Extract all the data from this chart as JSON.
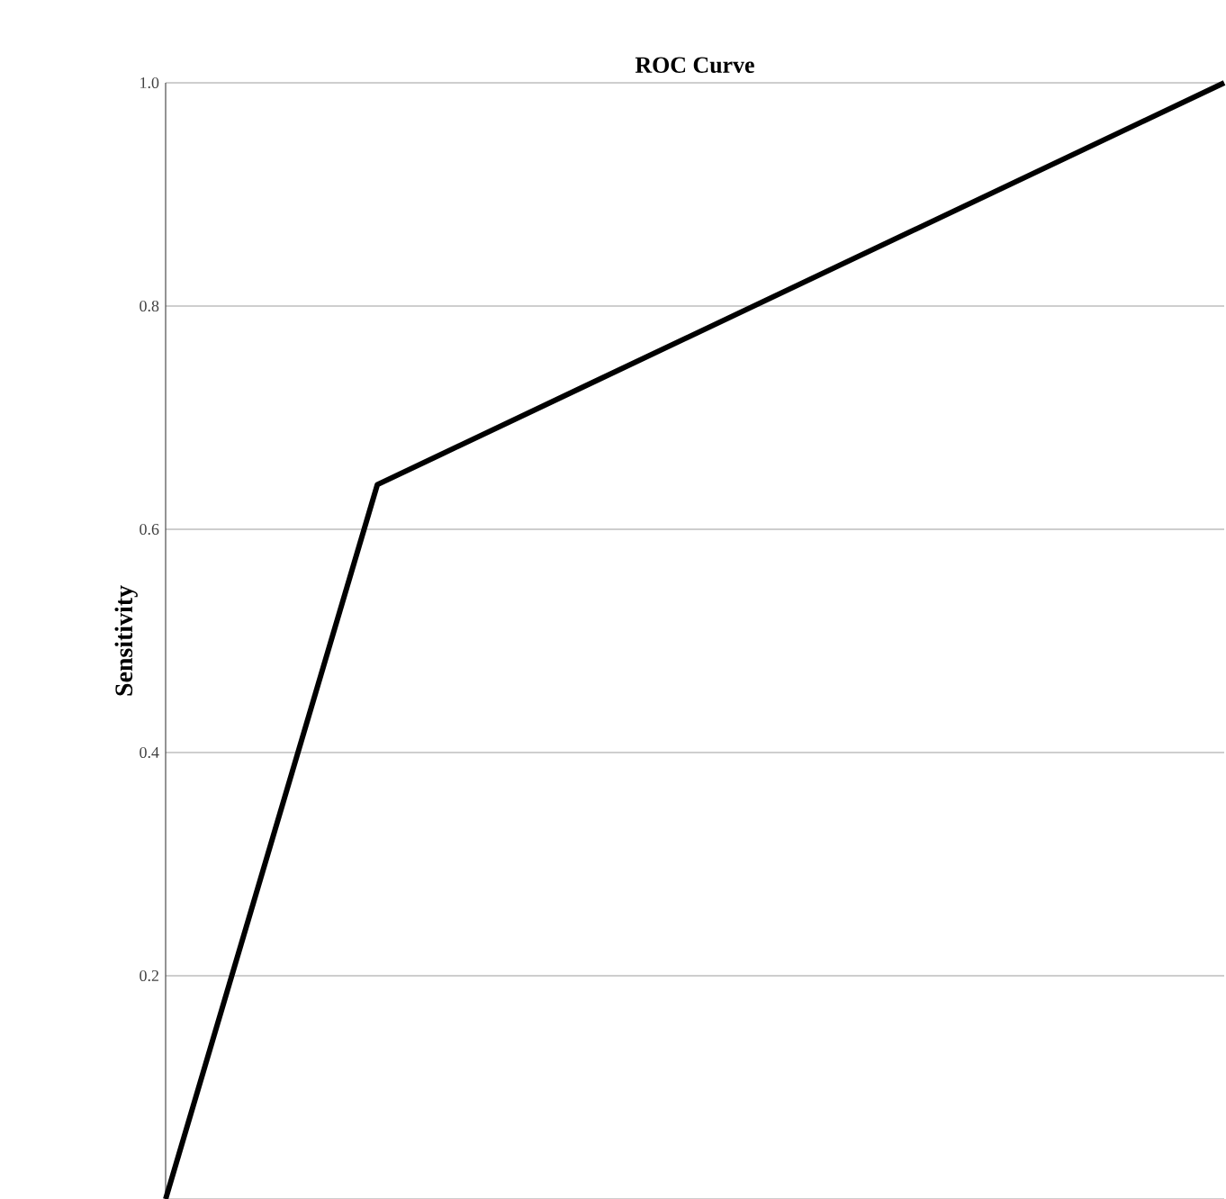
{
  "chart_data": {
    "type": "line",
    "title": "ROC Curve",
    "ylabel": "Sensitivity",
    "categories": [
      null,
      null,
      null,
      null,
      null,
      null
    ],
    "series": [
      {
        "color": "#000000",
        "values": [
          0,
          0.64,
          0.73,
          0.82,
          0.91,
          1.0
        ]
      }
    ],
    "ylim": [
      0,
      1
    ],
    "yticks": [
      {
        "value": 0,
        "label": null
      },
      {
        "value": 0.2,
        "label": "0.2"
      },
      {
        "value": 0.4,
        "label": "0.4"
      },
      {
        "value": 0.6,
        "label": "0.6"
      },
      {
        "value": 0.8,
        "label": "0.8"
      },
      {
        "value": 1.0,
        "label": "1.0"
      }
    ],
    "tick_labels": "y",
    "grid": "y",
    "marker": "none",
    "line_style": "solid"
  }
}
